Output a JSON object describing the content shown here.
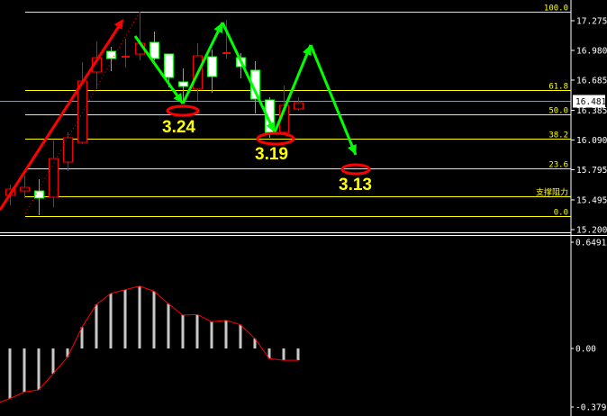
{
  "chart_data": [
    {
      "type": "candlestick",
      "price_axis": {
        "ticks": [
          17.275,
          16.98,
          16.685,
          16.385,
          16.09,
          15.795,
          15.495,
          15.2
        ],
        "range": [
          15.2,
          17.275
        ]
      },
      "current_price": "16.481",
      "fib_levels": [
        {
          "label": "100.0",
          "price": 17.364
        },
        {
          "label": "61.8",
          "price": 16.586
        },
        {
          "label": "50.0",
          "price": 16.345
        },
        {
          "label": "38.2",
          "price": 16.103
        },
        {
          "label": "23.6",
          "price": 15.807
        },
        {
          "label": "支撑阻力",
          "price": 15.531
        },
        {
          "label": "0.0",
          "price": 15.334
        }
      ],
      "candles": [
        {
          "o": 15.54,
          "h": 15.647,
          "l": 15.441,
          "c": 15.602
        },
        {
          "o": 15.584,
          "h": 15.736,
          "l": 15.513,
          "c": 15.62
        },
        {
          "o": 15.584,
          "h": 15.701,
          "l": 15.343,
          "c": 15.513
        },
        {
          "o": 15.522,
          "h": 16.085,
          "l": 15.423,
          "c": 15.906
        },
        {
          "o": 15.871,
          "h": 16.166,
          "l": 15.781,
          "c": 16.112
        },
        {
          "o": 16.067,
          "h": 16.864,
          "l": 16.05,
          "c": 16.676
        },
        {
          "o": 16.765,
          "h": 17.07,
          "l": 16.595,
          "c": 16.908
        },
        {
          "o": 16.971,
          "h": 17.016,
          "l": 16.774,
          "c": 16.899
        },
        {
          "o": 16.917,
          "h": 17.096,
          "l": 16.81,
          "c": 16.917
        },
        {
          "o": 16.944,
          "h": 17.364,
          "l": 16.881,
          "c": 17.051
        },
        {
          "o": 17.06,
          "h": 17.168,
          "l": 16.881,
          "c": 16.899
        },
        {
          "o": 16.944,
          "h": 16.944,
          "l": 16.613,
          "c": 16.711
        },
        {
          "o": 16.667,
          "h": 16.801,
          "l": 16.452,
          "c": 16.622
        },
        {
          "o": 16.595,
          "h": 17.051,
          "l": 16.479,
          "c": 16.926
        },
        {
          "o": 16.917,
          "h": 16.989,
          "l": 16.559,
          "c": 16.72
        },
        {
          "o": 16.953,
          "h": 17.284,
          "l": 16.899,
          "c": 16.953
        },
        {
          "o": 16.908,
          "h": 16.953,
          "l": 16.703,
          "c": 16.819
        },
        {
          "o": 16.783,
          "h": 16.872,
          "l": 16.354,
          "c": 16.497
        },
        {
          "o": 16.488,
          "h": 16.515,
          "l": 16.112,
          "c": 16.166
        },
        {
          "o": 16.166,
          "h": 16.631,
          "l": 16.157,
          "c": 16.434
        },
        {
          "o": 16.398,
          "h": 16.515,
          "l": 16.38,
          "c": 16.461
        }
      ],
      "annotations": [
        "3.24",
        "3.19",
        "3.13"
      ],
      "colors": {
        "up": "#ff0000",
        "down": "#00ff00",
        "down_body": "#ffffff",
        "fib": "#ffff00",
        "arrow_up": "#ff0000",
        "arrow_zigzag": "#00ff00"
      }
    },
    {
      "type": "bar",
      "axis": {
        "ticks": [
          "0.6491",
          "0.00",
          "-0.3796"
        ],
        "range": [
          -0.3796,
          0.6491
        ]
      },
      "values": [
        -0.306,
        -0.266,
        -0.253,
        -0.154,
        -0.053,
        0.13,
        0.268,
        0.336,
        0.359,
        0.381,
        0.35,
        0.273,
        0.204,
        0.207,
        0.163,
        0.172,
        0.145,
        0.061,
        -0.062,
        -0.072,
        -0.072
      ],
      "line_start": -0.328,
      "colors": {
        "bars": "#c8c8c8",
        "line": "#ff0000"
      }
    }
  ]
}
